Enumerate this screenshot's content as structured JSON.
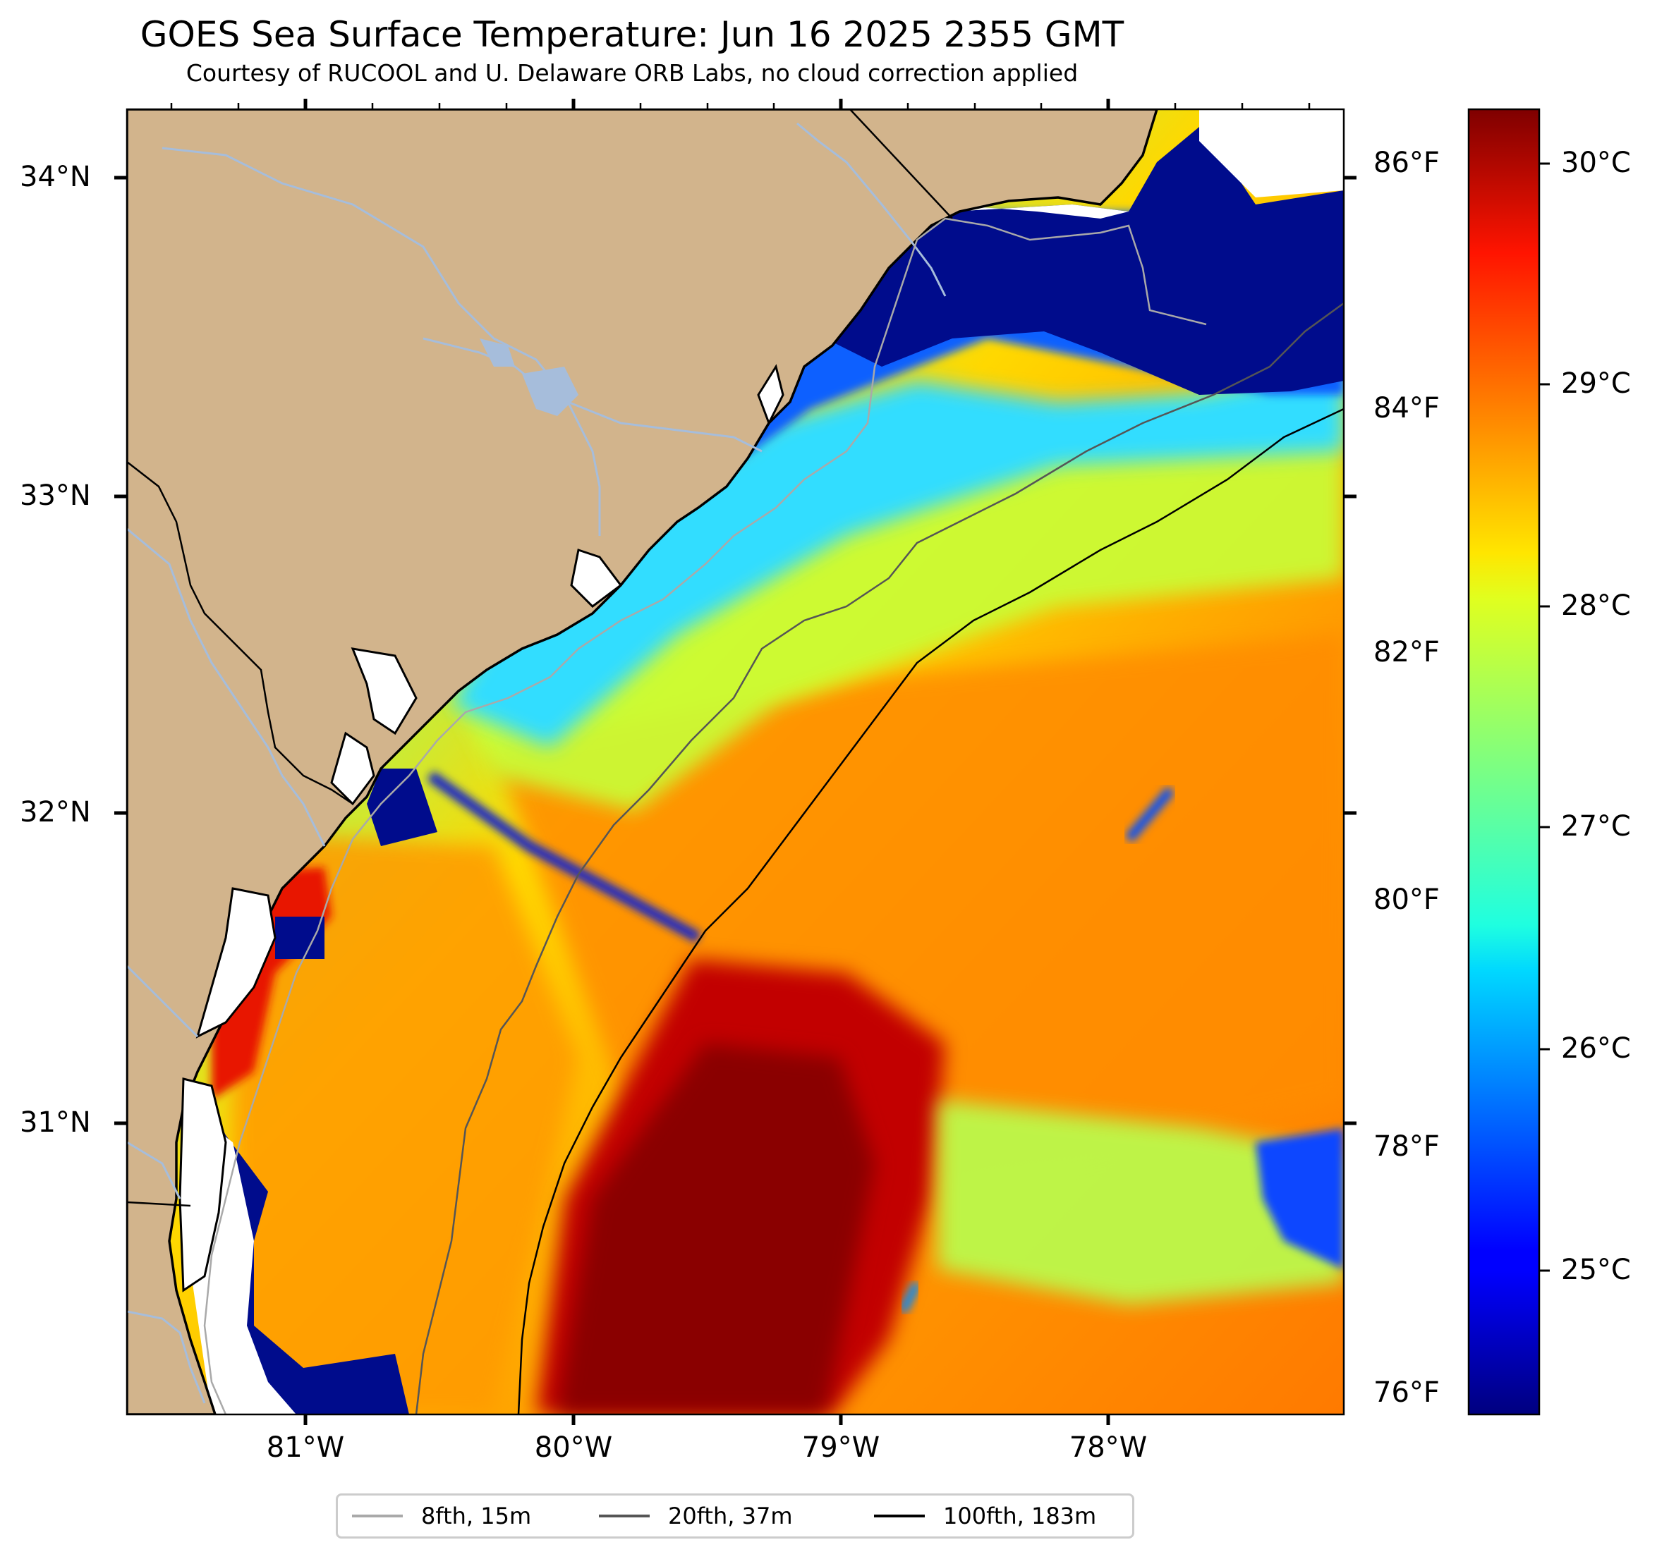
{
  "title": "GOES Sea Surface Temperature: Jun 16 2025 2355 GMT",
  "subtitle": "Courtesy of RUCOOL and U. Delaware ORB Labs, no cloud correction applied",
  "map": {
    "extent": {
      "lon_min": -81.67,
      "lon_max": -77.12,
      "lat_min": 30.09,
      "lat_max": 34.22
    },
    "projection": "plate carree",
    "colormap": "jet",
    "land_color": "#D2B48C",
    "no_data_color": "#FFFFFF",
    "river_color": "#A6BDDB",
    "coastline_color": "#000000",
    "longitude_ticks": [
      {
        "value": -81,
        "label": "81°W"
      },
      {
        "value": -80,
        "label": "80°W"
      },
      {
        "value": -79,
        "label": "79°W"
      },
      {
        "value": -78,
        "label": "78°W"
      }
    ],
    "latitude_ticks": [
      {
        "value": 34,
        "label": "34°N"
      },
      {
        "value": 33,
        "label": "33°N"
      },
      {
        "value": 32,
        "label": "32°N"
      },
      {
        "value": 31,
        "label": "31°N"
      }
    ],
    "fahrenheit_ticks": [
      {
        "value": 86,
        "label": "86°F"
      },
      {
        "value": 84,
        "label": "84°F"
      },
      {
        "value": 82,
        "label": "82°F"
      },
      {
        "value": 80,
        "label": "80°F"
      },
      {
        "value": 78,
        "label": "78°F"
      },
      {
        "value": 76,
        "label": "76°F"
      }
    ]
  },
  "colorbar": {
    "min_c": 24.3,
    "max_c": 30.3,
    "ticks": [
      {
        "value": 30,
        "label": "30°C"
      },
      {
        "value": 29,
        "label": "29°C"
      },
      {
        "value": 28,
        "label": "28°C"
      },
      {
        "value": 27,
        "label": "27°C"
      },
      {
        "value": 26,
        "label": "26°C"
      },
      {
        "value": 25,
        "label": "25°C"
      }
    ]
  },
  "legend": {
    "items": [
      {
        "label": "8fth, 15m",
        "color": "#A9A9A9"
      },
      {
        "label": "20fth, 37m",
        "color": "#555555"
      },
      {
        "label": "100fth, 183m",
        "color": "#000000"
      }
    ]
  }
}
